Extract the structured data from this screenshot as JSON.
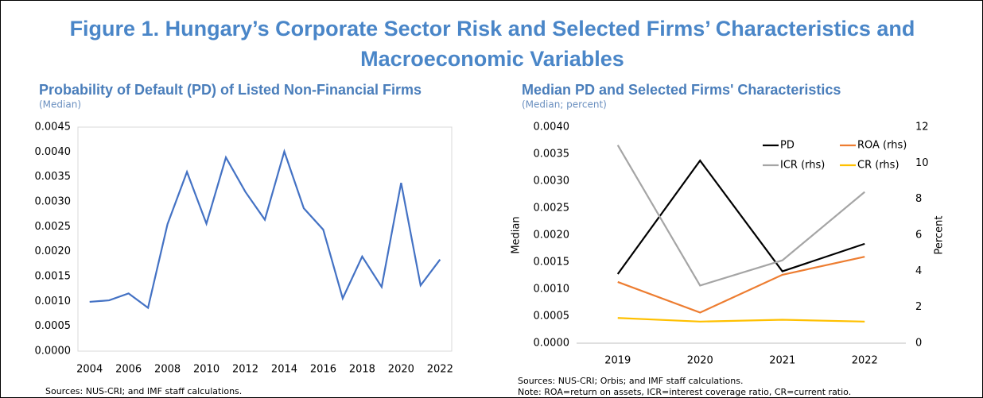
{
  "figure_title": "Figure 1. Hungary’s Corporate Sector Risk and Selected Firms’ Characteristics and Macroeconomic Variables",
  "chart_data": [
    {
      "type": "line",
      "title": "Probability of Default (PD) of Listed Non-Financial Firms",
      "subtitle": "(Median)",
      "x": [
        2004,
        2005,
        2006,
        2007,
        2008,
        2009,
        2010,
        2011,
        2012,
        2013,
        2014,
        2015,
        2016,
        2017,
        2018,
        2019,
        2020,
        2021,
        2022
      ],
      "values": [
        0.00099,
        0.00102,
        0.00116,
        0.00087,
        0.00255,
        0.0036,
        0.00256,
        0.00389,
        0.0032,
        0.00264,
        0.00401,
        0.00287,
        0.00244,
        0.00106,
        0.0019,
        0.00129,
        0.00338,
        0.00132,
        0.00184
      ],
      "color": "#4472c4",
      "xlim": [
        2003.4,
        2022.6
      ],
      "xticks": [
        2004,
        2006,
        2008,
        2010,
        2012,
        2014,
        2016,
        2018,
        2020,
        2022
      ],
      "ylim": [
        0,
        0.0045
      ],
      "yticks": [
        {
          "value": 0,
          "label": "0.0000"
        },
        {
          "value": 0.0005,
          "label": "0.0005"
        },
        {
          "value": 0.001,
          "label": "0.0010"
        },
        {
          "value": 0.0015,
          "label": "0.0015"
        },
        {
          "value": 0.002,
          "label": "0.0020"
        },
        {
          "value": 0.0025,
          "label": "0.0025"
        },
        {
          "value": 0.003,
          "label": "0.0030"
        },
        {
          "value": 0.0035,
          "label": "0.0035"
        },
        {
          "value": 0.004,
          "label": "0.0040"
        },
        {
          "value": 0.0045,
          "label": "0.0045"
        }
      ],
      "grid": false,
      "sources": "Sources: NUS-CRI; and IMF staff calculations."
    },
    {
      "type": "line",
      "title": "Median PD and Selected Firms' Characteristics",
      "subtitle": "(Median; percent)",
      "y_label": "Median",
      "y2_label": "Percent",
      "categories": [
        "2019",
        "2020",
        "2021",
        "2022"
      ],
      "series": [
        {
          "name": "PD",
          "color": "#000000",
          "values": [
            0.00128,
            0.00338,
            0.00133,
            0.00184
          ]
        },
        {
          "name": "ROA (rhs)",
          "color": "#ed7d31",
          "axis": "y2",
          "values": [
            3.4,
            1.7,
            3.8,
            4.8
          ]
        },
        {
          "name": "ICR (rhs)",
          "color": "#a5a5a5",
          "axis": "y2",
          "values": [
            11.0,
            3.2,
            4.6,
            8.4
          ]
        },
        {
          "name": "CR (rhs)",
          "color": "#ffc000",
          "axis": "y2",
          "values": [
            1.4,
            1.2,
            1.3,
            1.2
          ]
        }
      ],
      "ylim": [
        0,
        0.004
      ],
      "yticks": [
        {
          "value": 0,
          "label": "0.0000"
        },
        {
          "value": 0.0005,
          "label": "0.0005"
        },
        {
          "value": 0.001,
          "label": "0.0010"
        },
        {
          "value": 0.0015,
          "label": "0.0015"
        },
        {
          "value": 0.002,
          "label": "0.0020"
        },
        {
          "value": 0.0025,
          "label": "0.0025"
        },
        {
          "value": 0.003,
          "label": "0.0030"
        },
        {
          "value": 0.0035,
          "label": "0.0035"
        },
        {
          "value": 0.004,
          "label": "0.0040"
        }
      ],
      "y2lim": [
        0,
        12
      ],
      "y2ticks": [
        0,
        2,
        4,
        6,
        8,
        10,
        12
      ],
      "grid": false,
      "legend": "upper right",
      "sources": "Sources: NUS-CRI; Orbis; and IMF staff calculations.",
      "note": "Note: ROA=return on assets, ICR=interest coverage ratio, CR=current ratio."
    }
  ]
}
